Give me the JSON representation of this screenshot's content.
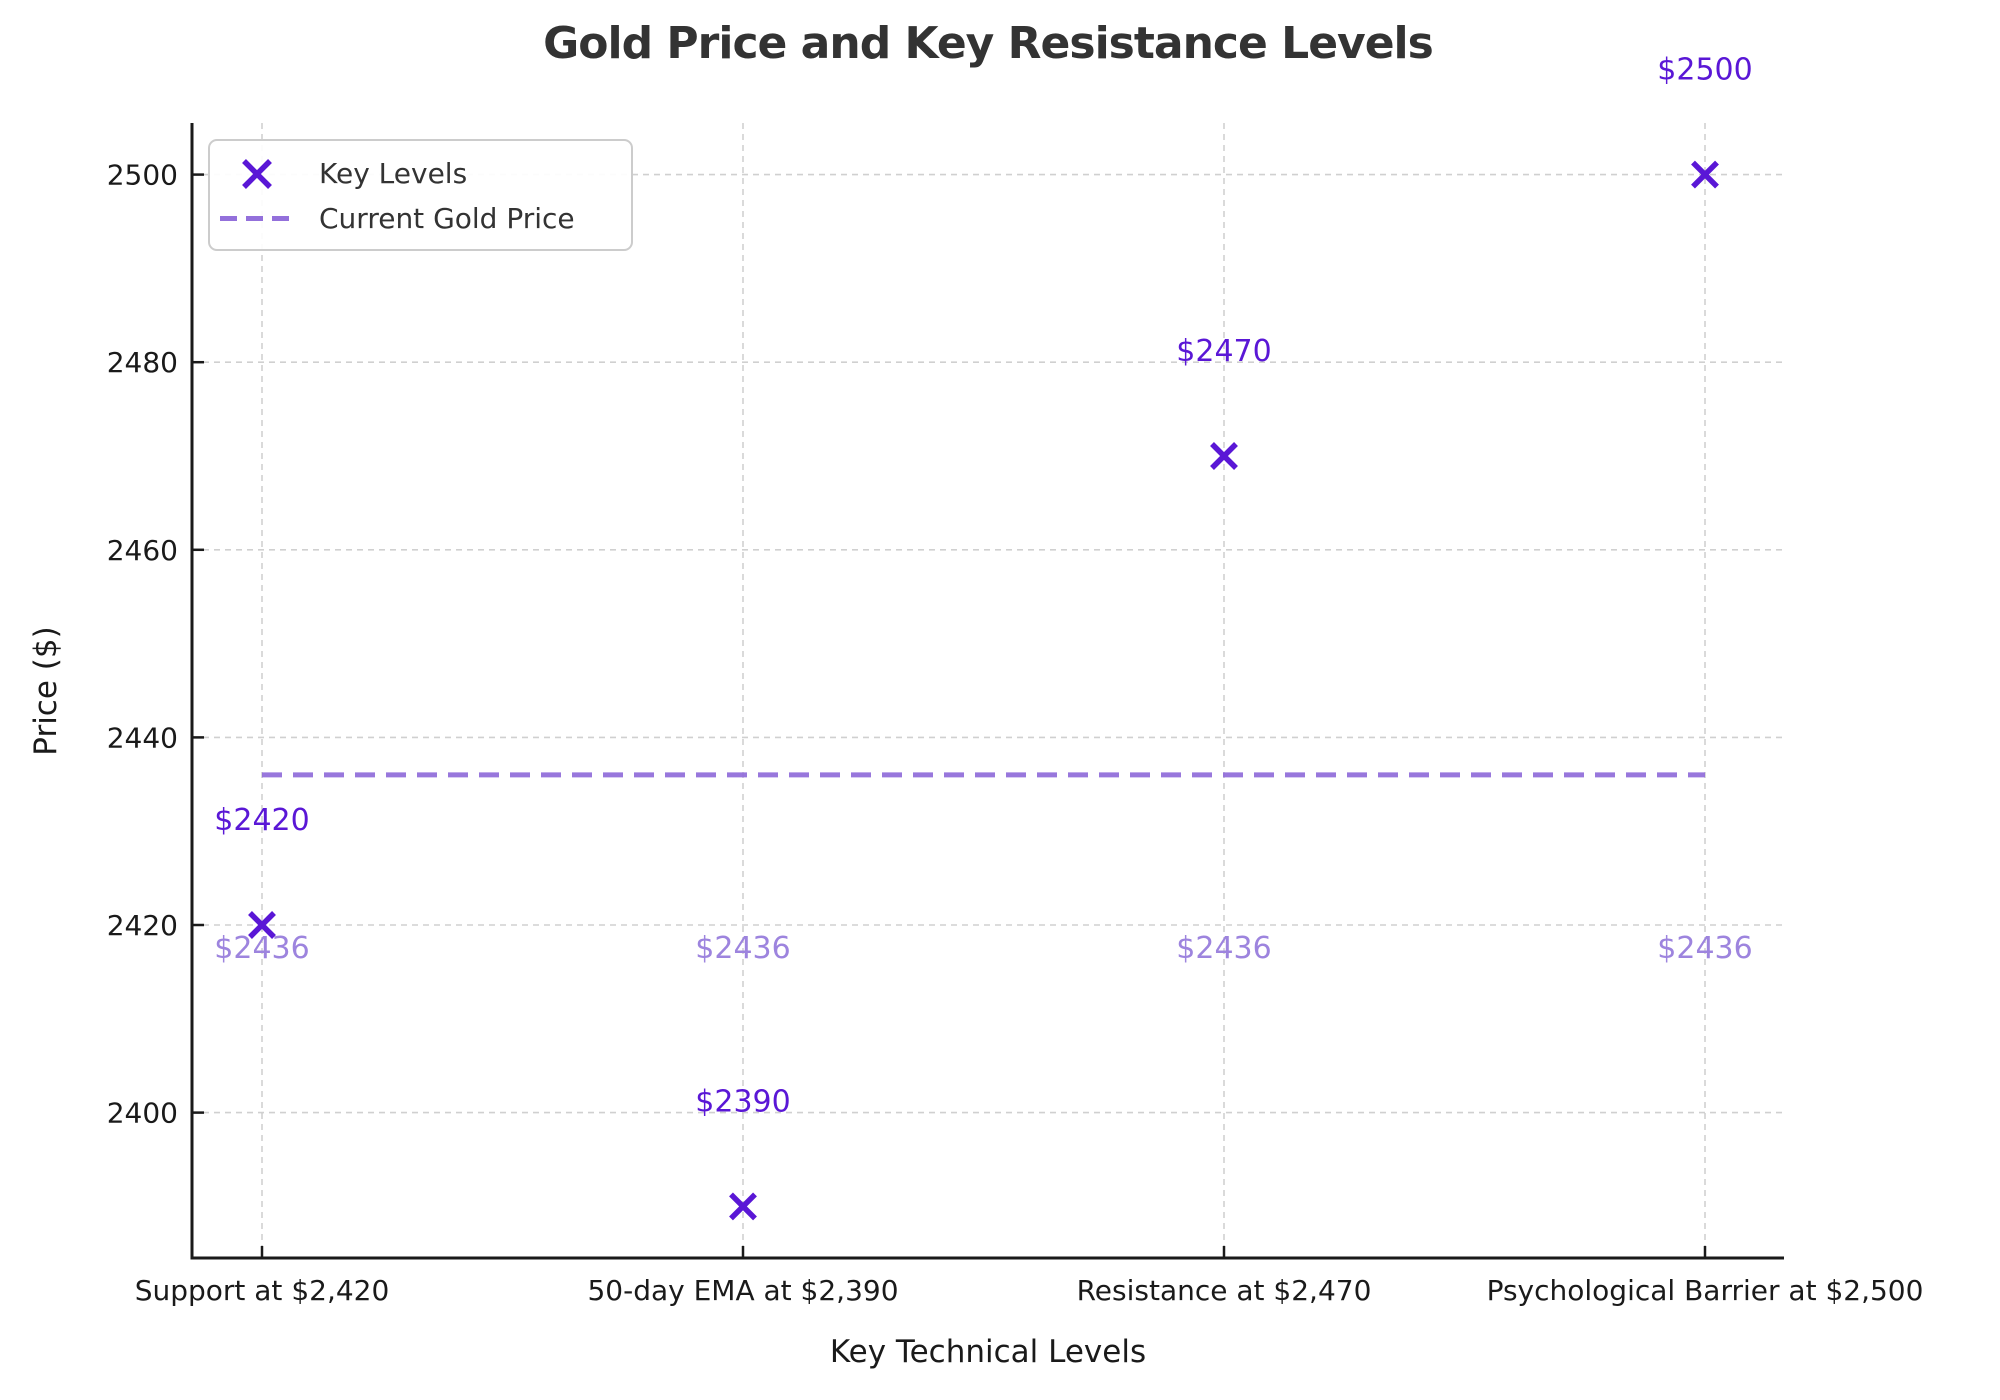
{
  "chart_data": {
    "type": "scatter",
    "title": "Gold Price and Key Resistance Levels",
    "xlabel": "Key Technical Levels",
    "ylabel": "Price ($)",
    "categories": [
      "Support at $2,420",
      "50-day EMA at $2,390",
      "Resistance at $2,470",
      "Psychological Barrier at $2,500"
    ],
    "series": [
      {
        "name": "Key Levels",
        "marker": "x",
        "values": [
          2420,
          2390,
          2470,
          2500
        ],
        "point_labels": [
          "$2420",
          "$2390",
          "$2470",
          "$2500"
        ]
      }
    ],
    "current_price": {
      "name": "Current Gold Price",
      "value": 2436,
      "style": "dashed-line",
      "labels": [
        "$2436",
        "$2436",
        "$2436",
        "$2436"
      ]
    },
    "yticks": [
      2400,
      2420,
      2440,
      2460,
      2480,
      2500
    ],
    "ylim": [
      2384.5,
      2505.5
    ],
    "grid": true,
    "legend_position": "upper left",
    "legend": [
      {
        "label": "Key Levels"
      },
      {
        "label": "Current Gold Price"
      }
    ],
    "colors": {
      "key_levels": "#5a17d6",
      "current_price_line": "#9370db",
      "current_price_label": "#9d84de",
      "grid": "#c8c8c8",
      "axis": "#1a1a1a",
      "tick_label": "#1a1a1a",
      "title": "#333333",
      "legend_border": "#cccccc"
    }
  }
}
